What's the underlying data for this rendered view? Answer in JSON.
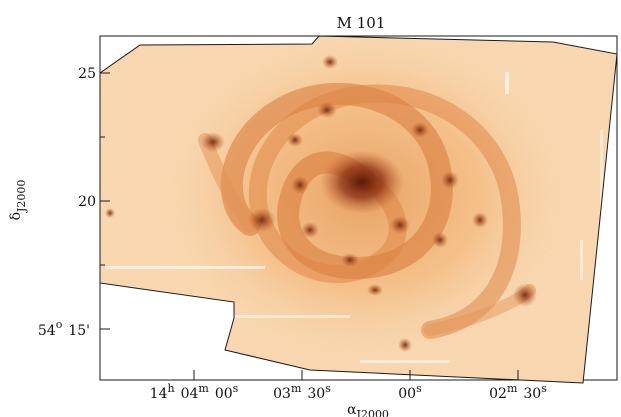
{
  "figure": {
    "title": "M 101",
    "x_axis": {
      "label_main": "α",
      "label_sub": "J2000",
      "ticks": [
        {
          "h": "14",
          "hs": "h",
          "m": "04",
          "ms": "m",
          "s": "00",
          "ss": "s"
        },
        {
          "h": "",
          "hs": "",
          "m": "03",
          "ms": "m",
          "s": "30",
          "ss": "s"
        },
        {
          "h": "",
          "hs": "",
          "m": "",
          "ms": "",
          "s": "00",
          "ss": "s"
        },
        {
          "h": "",
          "hs": "",
          "m": "02",
          "ms": "m",
          "s": "30",
          "ss": "s"
        }
      ]
    },
    "y_axis": {
      "label_main": "δ",
      "label_sub": "J2000",
      "ticks": [
        {
          "deg": "",
          "degs": "",
          "min": "25",
          "mins": ""
        },
        {
          "deg": "",
          "degs": "",
          "min": "20",
          "mins": ""
        },
        {
          "deg": "54",
          "degs": "o",
          "min": "15",
          "mins": "'"
        }
      ]
    },
    "colors": {
      "background": "#fdf3e6",
      "disk": "#f7c48e",
      "arms": "#e08a44",
      "knots": "#9a3a16",
      "core": "#6e230c",
      "frame": "#1a1a1a"
    }
  }
}
